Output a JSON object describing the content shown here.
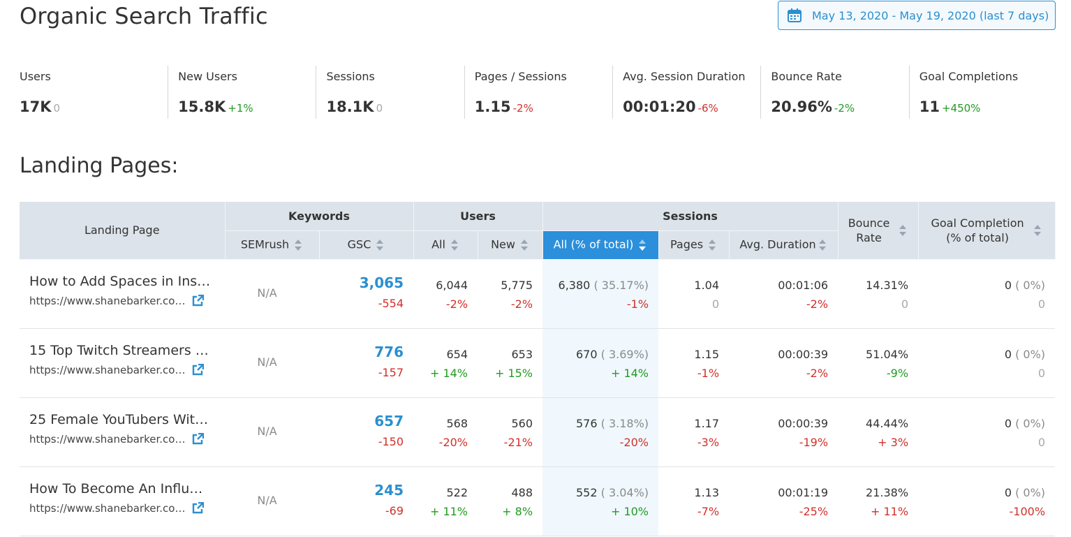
{
  "header": {
    "title": "Organic Search Traffic",
    "date_range": "May 13, 2020 - May 19, 2020 (last 7 days)",
    "date_icon": "calendar-icon"
  },
  "metrics": [
    {
      "label": "Users",
      "value": "17K",
      "delta": "0",
      "trend": "zero"
    },
    {
      "label": "New Users",
      "value": "15.8K",
      "delta": "+1%",
      "trend": "pos"
    },
    {
      "label": "Sessions",
      "value": "18.1K",
      "delta": "0",
      "trend": "zero"
    },
    {
      "label": "Pages / Sessions",
      "value": "1.15",
      "delta": "-2%",
      "trend": "neg"
    },
    {
      "label": "Avg. Session Duration",
      "value": "00:01:20",
      "delta": "-6%",
      "trend": "neg"
    },
    {
      "label": "Bounce Rate",
      "value": "20.96%",
      "delta": "-2%",
      "trend": "pos"
    },
    {
      "label": "Goal Completions",
      "value": "11",
      "delta": "+450%",
      "trend": "pos"
    }
  ],
  "landing": {
    "title": "Landing Pages:",
    "columns": {
      "landing_page": "Landing Page",
      "keywords": "Keywords",
      "users": "Users",
      "sessions": "Sessions",
      "semrush": "SEMrush",
      "gsc": "GSC",
      "all": "All",
      "new": "New",
      "sessions_all": "All (% of total)",
      "pages": "Pages",
      "avg_duration": "Avg. Duration",
      "bounce_l1": "Bounce",
      "bounce_l2": "Rate",
      "goal_l1": "Goal Completion",
      "goal_l2": "(% of total)"
    },
    "rows": [
      {
        "title": "How to Add Spaces in Ins…",
        "url": "https://www.shanebarker.co…",
        "semrush": "N/A",
        "gsc": {
          "v": "3,065",
          "d": "-554",
          "t": "neg"
        },
        "users_all": {
          "v": "6,044",
          "d": "-2%",
          "t": "neg"
        },
        "users_new": {
          "v": "5,775",
          "d": "-2%",
          "t": "neg"
        },
        "sessions_all": {
          "v": "6,380",
          "p": "( 35.17%)",
          "d": "-1%",
          "t": "neg"
        },
        "pages": {
          "v": "1.04",
          "d": "0",
          "t": "zero"
        },
        "duration": {
          "v": "00:01:06",
          "d": "-2%",
          "t": "neg"
        },
        "bounce": {
          "v": "14.31%",
          "d": "0",
          "t": "zero"
        },
        "goal": {
          "v": "0",
          "p": "( 0%)",
          "d": "0",
          "t": "zero"
        }
      },
      {
        "title": "15 Top Twitch Streamers …",
        "url": "https://www.shanebarker.co…",
        "semrush": "N/A",
        "gsc": {
          "v": "776",
          "d": "-157",
          "t": "neg"
        },
        "users_all": {
          "v": "654",
          "d": "+ 14%",
          "t": "pos"
        },
        "users_new": {
          "v": "653",
          "d": "+ 15%",
          "t": "pos"
        },
        "sessions_all": {
          "v": "670",
          "p": "( 3.69%)",
          "d": "+ 14%",
          "t": "pos"
        },
        "pages": {
          "v": "1.15",
          "d": "-1%",
          "t": "neg"
        },
        "duration": {
          "v": "00:00:39",
          "d": "-2%",
          "t": "neg"
        },
        "bounce": {
          "v": "51.04%",
          "d": "-9%",
          "t": "pos"
        },
        "goal": {
          "v": "0",
          "p": "( 0%)",
          "d": "0",
          "t": "zero"
        }
      },
      {
        "title": "25 Female YouTubers Wit…",
        "url": "https://www.shanebarker.co…",
        "semrush": "N/A",
        "gsc": {
          "v": "657",
          "d": "-150",
          "t": "neg"
        },
        "users_all": {
          "v": "568",
          "d": "-20%",
          "t": "neg"
        },
        "users_new": {
          "v": "560",
          "d": "-21%",
          "t": "neg"
        },
        "sessions_all": {
          "v": "576",
          "p": "( 3.18%)",
          "d": "-20%",
          "t": "neg"
        },
        "pages": {
          "v": "1.17",
          "d": "-3%",
          "t": "neg"
        },
        "duration": {
          "v": "00:00:39",
          "d": "-19%",
          "t": "neg"
        },
        "bounce": {
          "v": "44.44%",
          "d": "+ 3%",
          "t": "neg"
        },
        "goal": {
          "v": "0",
          "p": "( 0%)",
          "d": "0",
          "t": "zero"
        }
      },
      {
        "title": "How To Become An Influ…",
        "url": "https://www.shanebarker.co…",
        "semrush": "N/A",
        "gsc": {
          "v": "245",
          "d": "-69",
          "t": "neg"
        },
        "users_all": {
          "v": "522",
          "d": "+ 11%",
          "t": "pos"
        },
        "users_new": {
          "v": "488",
          "d": "+ 8%",
          "t": "pos"
        },
        "sessions_all": {
          "v": "552",
          "p": "( 3.04%)",
          "d": "+ 10%",
          "t": "pos"
        },
        "pages": {
          "v": "1.13",
          "d": "-7%",
          "t": "neg"
        },
        "duration": {
          "v": "00:01:19",
          "d": "-25%",
          "t": "neg"
        },
        "bounce": {
          "v": "21.38%",
          "d": "+ 11%",
          "t": "neg"
        },
        "goal": {
          "v": "0",
          "p": "( 0%)",
          "d": "-100%",
          "t": "neg"
        }
      }
    ]
  },
  "colors": {
    "accent": "#2b8fcf",
    "active_header": "#2b8fdb",
    "negative": "#d0302b",
    "positive": "#219a21",
    "header_bg": "#dde3ea"
  }
}
